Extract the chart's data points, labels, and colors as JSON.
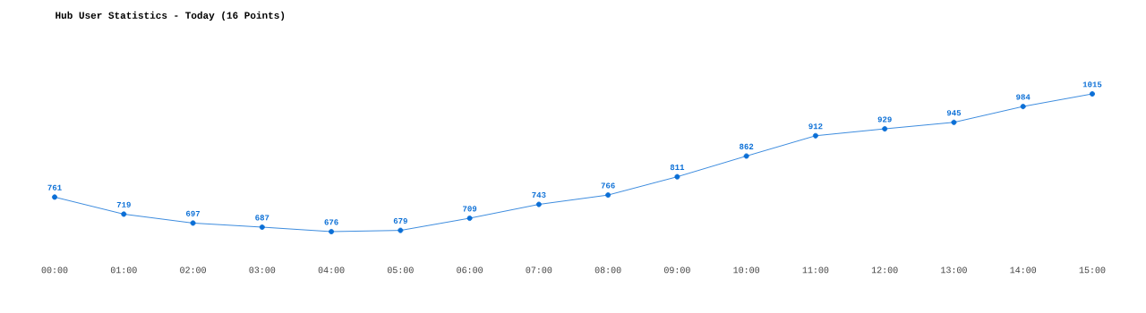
{
  "chart_data": {
    "type": "line",
    "title": "Hub User Statistics - Today (16 Points)",
    "categories": [
      "00:00",
      "01:00",
      "02:00",
      "03:00",
      "04:00",
      "05:00",
      "06:00",
      "07:00",
      "08:00",
      "09:00",
      "10:00",
      "11:00",
      "12:00",
      "13:00",
      "14:00",
      "15:00"
    ],
    "values": [
      761,
      719,
      697,
      687,
      676,
      679,
      709,
      743,
      766,
      811,
      862,
      912,
      929,
      945,
      984,
      1015
    ],
    "color": "#0b6fd6",
    "marker": "circle",
    "data_labels": true
  }
}
